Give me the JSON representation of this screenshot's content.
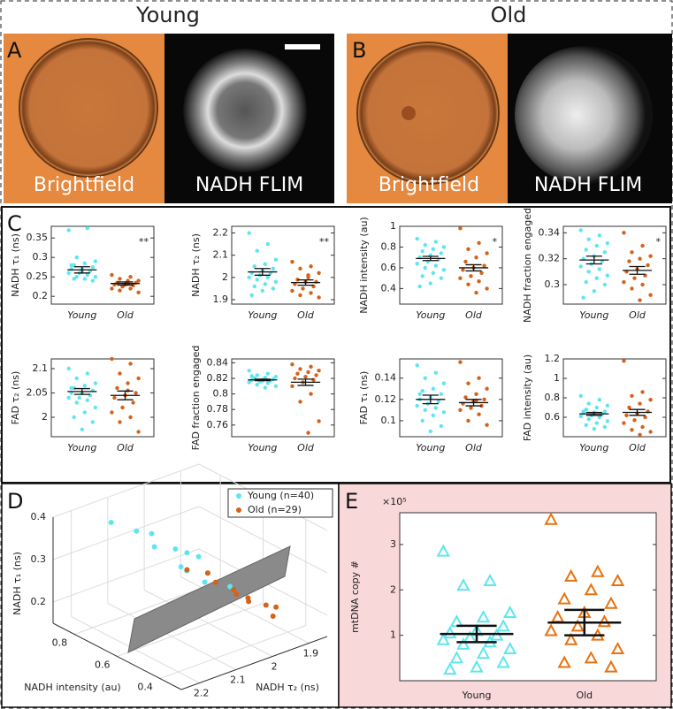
{
  "header": {
    "young": "Young",
    "old": "Old"
  },
  "images": [
    {
      "letter": "A",
      "brightfield": "Brightfield",
      "flim": "NADH FLIM"
    },
    {
      "letter": "B",
      "brightfield": "Brightfield",
      "flim": "NADH FLIM"
    }
  ],
  "panel_letters": {
    "c": "C",
    "d": "D",
    "e": "E"
  },
  "chart_data": [
    {
      "type": "strip",
      "ylabel": "NADH τ₁ (ns)",
      "annotation": "**",
      "categories": [
        "Young",
        "Old"
      ],
      "ylim": [
        0.18,
        0.38
      ],
      "yticks": [
        0.2,
        0.25,
        0.3,
        0.35
      ],
      "series": [
        {
          "color": "#5ee6ee",
          "values": [
            0.37,
            0.375,
            0.3,
            0.29,
            0.285,
            0.28,
            0.275,
            0.27,
            0.27,
            0.265,
            0.26,
            0.26,
            0.255,
            0.25,
            0.25,
            0.245,
            0.245,
            0.24,
            0.265,
            0.28
          ],
          "mean": 0.268,
          "err": 0.008
        },
        {
          "color": "#d4621a",
          "values": [
            0.255,
            0.25,
            0.245,
            0.24,
            0.24,
            0.235,
            0.235,
            0.23,
            0.23,
            0.228,
            0.225,
            0.22,
            0.22,
            0.215,
            0.21,
            0.232
          ],
          "mean": 0.233,
          "err": 0.004
        }
      ]
    },
    {
      "type": "strip",
      "ylabel": "NADH τ₂ (ns)",
      "annotation": "**",
      "categories": [
        "Young",
        "Old"
      ],
      "ylim": [
        1.88,
        2.23
      ],
      "yticks": [
        1.9,
        2,
        2.1,
        2.2
      ],
      "series": [
        {
          "color": "#5ee6ee",
          "values": [
            2.2,
            2.15,
            2.12,
            2.08,
            2.06,
            2.05,
            2.04,
            2.03,
            2.02,
            2.02,
            2.01,
            2.0,
            2.0,
            1.99,
            1.98,
            1.97,
            1.96,
            1.95,
            1.94,
            1.92
          ],
          "mean": 2.025,
          "err": 0.015
        },
        {
          "color": "#d4621a",
          "values": [
            2.07,
            2.05,
            2.04,
            2.02,
            2.0,
            1.99,
            1.98,
            1.98,
            1.97,
            1.96,
            1.95,
            1.94,
            1.93,
            1.92,
            1.91,
            2.01
          ],
          "mean": 1.977,
          "err": 0.012
        }
      ]
    },
    {
      "type": "strip",
      "ylabel": "NADH intensity (au)",
      "annotation": "*",
      "categories": [
        "Young",
        "Old"
      ],
      "ylim": [
        0.25,
        1.0
      ],
      "yticks": [
        0.4,
        0.6,
        0.8,
        1
      ],
      "series": [
        {
          "color": "#5ee6ee",
          "values": [
            0.88,
            0.85,
            0.82,
            0.8,
            0.78,
            0.76,
            0.74,
            0.72,
            0.7,
            0.68,
            0.66,
            0.64,
            0.62,
            0.6,
            0.58,
            0.55,
            0.52,
            0.5,
            0.45,
            0.42
          ],
          "mean": 0.69,
          "err": 0.02
        },
        {
          "color": "#d4621a",
          "values": [
            0.98,
            0.84,
            0.78,
            0.74,
            0.7,
            0.66,
            0.62,
            0.6,
            0.58,
            0.55,
            0.52,
            0.5,
            0.47,
            0.44,
            0.4,
            0.36
          ],
          "mean": 0.6,
          "err": 0.03
        }
      ]
    },
    {
      "type": "strip",
      "ylabel": "NADH fraction engaged",
      "annotation": "*",
      "categories": [
        "Young",
        "Old"
      ],
      "ylim": [
        0.285,
        0.345
      ],
      "yticks": [
        0.3,
        0.32,
        0.34
      ],
      "series": [
        {
          "color": "#5ee6ee",
          "values": [
            0.342,
            0.338,
            0.335,
            0.332,
            0.33,
            0.327,
            0.325,
            0.322,
            0.32,
            0.318,
            0.316,
            0.314,
            0.312,
            0.31,
            0.307,
            0.305,
            0.302,
            0.3,
            0.295,
            0.29
          ],
          "mean": 0.319,
          "err": 0.003
        },
        {
          "color": "#d4621a",
          "values": [
            0.34,
            0.33,
            0.325,
            0.322,
            0.32,
            0.318,
            0.315,
            0.312,
            0.31,
            0.307,
            0.305,
            0.302,
            0.3,
            0.297,
            0.292,
            0.288
          ],
          "mean": 0.311,
          "err": 0.003
        }
      ]
    },
    {
      "type": "strip",
      "ylabel": "FAD τ₂ (ns)",
      "categories": [
        "Young",
        "Old"
      ],
      "ylim": [
        1.96,
        2.12
      ],
      "yticks": [
        2,
        2.05,
        2.1
      ],
      "series": [
        {
          "color": "#5ee6ee",
          "values": [
            2.1,
            2.09,
            2.08,
            2.07,
            2.065,
            2.06,
            2.055,
            2.05,
            2.05,
            2.045,
            2.04,
            2.04,
            2.035,
            2.03,
            2.02,
            2.01,
            2.0,
            1.99,
            1.975,
            2.06
          ],
          "mean": 2.053,
          "err": 0.006
        },
        {
          "color": "#d4621a",
          "values": [
            2.12,
            2.11,
            2.09,
            2.08,
            2.07,
            2.06,
            2.05,
            2.045,
            2.04,
            2.03,
            2.02,
            2.01,
            2.0,
            1.99,
            1.97,
            2.055
          ],
          "mean": 2.045,
          "err": 0.009
        }
      ]
    },
    {
      "type": "strip",
      "ylabel": "FAD fraction engaged",
      "categories": [
        "Young",
        "Old"
      ],
      "ylim": [
        0.745,
        0.845
      ],
      "yticks": [
        0.76,
        0.78,
        0.8,
        0.82,
        0.84
      ],
      "series": [
        {
          "color": "#5ee6ee",
          "values": [
            0.83,
            0.826,
            0.824,
            0.822,
            0.821,
            0.82,
            0.819,
            0.818,
            0.818,
            0.817,
            0.816,
            0.815,
            0.814,
            0.812,
            0.81,
            0.808,
            0.82,
            0.819,
            0.817,
            0.823
          ],
          "mean": 0.818,
          "err": 0.001
        },
        {
          "color": "#d4621a",
          "values": [
            0.838,
            0.835,
            0.832,
            0.83,
            0.828,
            0.826,
            0.824,
            0.822,
            0.82,
            0.818,
            0.815,
            0.81,
            0.8,
            0.79,
            0.765,
            0.75
          ],
          "mean": 0.815,
          "err": 0.004
        }
      ]
    },
    {
      "type": "strip",
      "ylabel": "FAD τ₁ (ns)",
      "categories": [
        "Young",
        "Old"
      ],
      "ylim": [
        0.085,
        0.158
      ],
      "yticks": [
        0.1,
        0.12,
        0.14
      ],
      "series": [
        {
          "color": "#5ee6ee",
          "values": [
            0.152,
            0.145,
            0.14,
            0.135,
            0.13,
            0.128,
            0.125,
            0.122,
            0.12,
            0.118,
            0.116,
            0.114,
            0.112,
            0.11,
            0.108,
            0.105,
            0.1,
            0.095,
            0.09,
            0.125
          ],
          "mean": 0.12,
          "err": 0.004
        },
        {
          "color": "#d4621a",
          "values": [
            0.155,
            0.14,
            0.135,
            0.13,
            0.125,
            0.122,
            0.12,
            0.118,
            0.116,
            0.114,
            0.112,
            0.11,
            0.106,
            0.1,
            0.096,
            0.119
          ],
          "mean": 0.117,
          "err": 0.003
        }
      ]
    },
    {
      "type": "strip",
      "ylabel": "FAD intensity (au)",
      "categories": [
        "Young",
        "Old"
      ],
      "ylim": [
        0.4,
        1.2
      ],
      "yticks": [
        0.6,
        0.8,
        1,
        1.2
      ],
      "series": [
        {
          "color": "#5ee6ee",
          "values": [
            0.82,
            0.78,
            0.74,
            0.72,
            0.7,
            0.68,
            0.66,
            0.65,
            0.64,
            0.63,
            0.62,
            0.61,
            0.6,
            0.58,
            0.56,
            0.54,
            0.52,
            0.5,
            0.48,
            0.66
          ],
          "mean": 0.635,
          "err": 0.015
        },
        {
          "color": "#d4621a",
          "values": [
            1.18,
            0.86,
            0.82,
            0.78,
            0.74,
            0.7,
            0.66,
            0.64,
            0.62,
            0.6,
            0.57,
            0.54,
            0.5,
            0.47,
            0.45,
            0.42
          ],
          "mean": 0.65,
          "err": 0.03
        }
      ]
    },
    {
      "type": "scatter3d",
      "xlabel": "NADH τ₂ (ns)",
      "ylabel": "NADH intensity (au)",
      "zlabel": "NADH τ₁ (ns)",
      "xlim": [
        1.85,
        2.25
      ],
      "ylim": [
        0.3,
        0.9
      ],
      "zlim": [
        0.15,
        0.4
      ],
      "xticks": [
        1.9,
        2,
        2.1,
        2.2
      ],
      "yticks": [
        0.4,
        0.6,
        0.8
      ],
      "zticks": [
        0.2,
        0.3,
        0.4
      ],
      "series": [
        {
          "name": "Young (n=40)",
          "color": "#5ee6ee",
          "x": [
            2.12,
            2.08,
            2.05,
            2.02,
            2.0,
            1.98,
            2.06,
            2.03,
            1.99,
            2.01,
            2.04,
            1.97
          ],
          "y": [
            0.85,
            0.8,
            0.78,
            0.72,
            0.7,
            0.68,
            0.75,
            0.65,
            0.62,
            0.6,
            0.66,
            0.55
          ],
          "z": [
            0.36,
            0.34,
            0.33,
            0.3,
            0.29,
            0.28,
            0.31,
            0.27,
            0.26,
            0.25,
            0.28,
            0.24
          ]
        },
        {
          "name": "Old (n=29)",
          "color": "#d4621a",
          "x": [
            2.0,
            1.98,
            1.96,
            1.95,
            1.93,
            1.97,
            1.94,
            1.92,
            1.99,
            1.96
          ],
          "y": [
            0.7,
            0.6,
            0.55,
            0.5,
            0.45,
            0.52,
            0.4,
            0.42,
            0.62,
            0.48
          ],
          "z": [
            0.25,
            0.24,
            0.23,
            0.22,
            0.21,
            0.23,
            0.2,
            0.21,
            0.26,
            0.22
          ]
        }
      ]
    },
    {
      "type": "strip",
      "marker": "triangle",
      "ylabel": "mtDNA copy #",
      "y_multiplier": "×10⁵",
      "categories": [
        "Young",
        "Old"
      ],
      "ylim": [
        0,
        3.7
      ],
      "yticks": [
        1,
        2,
        3
      ],
      "series": [
        {
          "color": "#5ee6ee",
          "values": [
            2.85,
            2.2,
            2.1,
            1.5,
            1.4,
            1.3,
            1.2,
            1.1,
            1.05,
            1.0,
            0.95,
            0.9,
            0.85,
            0.8,
            0.7,
            0.6,
            0.5,
            0.4,
            0.3,
            0.25
          ],
          "mean": 1.03,
          "err": 0.18
        },
        {
          "color": "#e8720f",
          "values": [
            3.55,
            2.4,
            2.3,
            2.2,
            2.0,
            1.8,
            1.7,
            1.5,
            1.4,
            1.3,
            1.2,
            1.1,
            1.0,
            0.9,
            0.7,
            0.5,
            0.4,
            0.3
          ],
          "mean": 1.28,
          "err": 0.28
        }
      ]
    }
  ]
}
